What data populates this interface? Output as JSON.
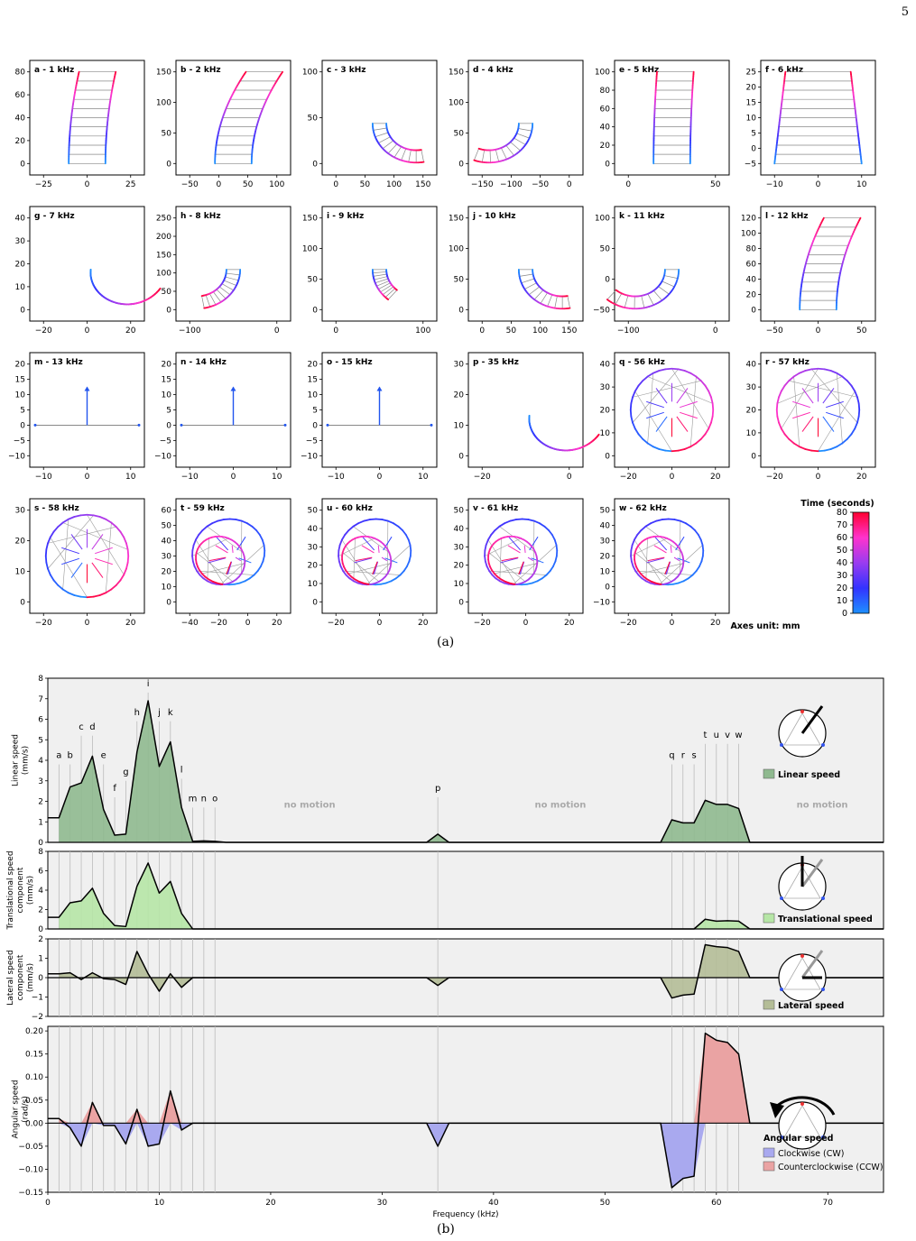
{
  "page_number": "5",
  "captions": {
    "a": "(a)",
    "b": "(b)"
  },
  "grid_note": "Axes unit: mm",
  "colorbar": {
    "label": "Time (seconds)",
    "ticks": [
      "0",
      "10",
      "20",
      "30",
      "40",
      "50",
      "60",
      "70",
      "80"
    ],
    "stops": [
      "#1e90ff",
      "#3333ff",
      "#9a3cf0",
      "#ff33cc",
      "#ff0030"
    ]
  },
  "colors": {
    "outline": "#000000",
    "grid": "#bbbbbb",
    "panel_bg": "#f0f0f0",
    "linear_fill": "#8fb98f",
    "trans_fill": "#b6e6a6",
    "lat_fill": "#b4bd97",
    "cw_fill": "#a9a9ef",
    "ccw_fill": "#eaa3a3",
    "no_motion": "#aaaaaa"
  },
  "trajectory_panels": [
    {
      "id": "a",
      "title": "a - 1 kHz",
      "xticks": [
        "-25",
        "0",
        "25"
      ],
      "yticks": [
        "0",
        "20",
        "40",
        "60",
        "80"
      ],
      "shape": "straight",
      "bend": 0.15
    },
    {
      "id": "b",
      "title": "b - 2 kHz",
      "xticks": [
        "-50",
        "0",
        "50",
        "100"
      ],
      "yticks": [
        "0",
        "50",
        "100",
        "150"
      ],
      "shape": "straight",
      "bend": 0.45
    },
    {
      "id": "c",
      "title": "c - 3 kHz",
      "xticks": [
        "0",
        "50",
        "100",
        "150"
      ],
      "yticks": [
        "0",
        "50",
        "100"
      ],
      "shape": "arc",
      "sweep": 200
    },
    {
      "id": "d",
      "title": "d - 4 kHz",
      "xticks": [
        "-150",
        "-100",
        "-50",
        "0"
      ],
      "yticks": [
        "0",
        "50",
        "100",
        "150"
      ],
      "shape": "arc",
      "sweep": -220
    },
    {
      "id": "e",
      "title": "e - 5 kHz",
      "xticks": [
        "0",
        "50"
      ],
      "yticks": [
        "0",
        "20",
        "40",
        "60",
        "80",
        "100"
      ],
      "shape": "straight",
      "bend": 0.05
    },
    {
      "id": "f",
      "title": "f - 6 kHz",
      "xticks": [
        "-10",
        "0",
        "10"
      ],
      "yticks": [
        "-5",
        "0",
        "5",
        "10",
        "15",
        "20",
        "25"
      ],
      "shape": "fan",
      "bend": 0
    },
    {
      "id": "g",
      "title": "g - 7 kHz",
      "xticks": [
        "-20",
        "0",
        "20"
      ],
      "yticks": [
        "0",
        "10",
        "20",
        "30",
        "40"
      ],
      "shape": "spiral",
      "sweep": 300
    },
    {
      "id": "h",
      "title": "h - 8 kHz",
      "xticks": [
        "-100",
        "0"
      ],
      "yticks": [
        "0",
        "50",
        "100",
        "150",
        "200",
        "250"
      ],
      "shape": "arc",
      "sweep": -160
    },
    {
      "id": "i",
      "title": "i - 9 kHz",
      "xticks": [
        "0",
        "100"
      ],
      "yticks": [
        "0",
        "50",
        "100",
        "150"
      ],
      "shape": "arc",
      "sweep": 100
    },
    {
      "id": "j",
      "title": "j - 10 kHz",
      "xticks": [
        "0",
        "50",
        "100",
        "150"
      ],
      "yticks": [
        "0",
        "50",
        "100",
        "150"
      ],
      "shape": "arc",
      "sweep": 200
    },
    {
      "id": "k",
      "title": "k - 11 kHz",
      "xticks": [
        "-100",
        "0"
      ],
      "yticks": [
        "-50",
        "0",
        "50",
        "100"
      ],
      "shape": "arc",
      "sweep": -260
    },
    {
      "id": "l",
      "title": "l - 12 kHz",
      "xticks": [
        "-50",
        "0",
        "50"
      ],
      "yticks": [
        "0",
        "20",
        "40",
        "60",
        "80",
        "100",
        "120"
      ],
      "shape": "straight",
      "bend": 0.35
    },
    {
      "id": "m",
      "title": "m - 13 kHz",
      "xticks": [
        "-10",
        "0",
        "10"
      ],
      "yticks": [
        "-10",
        "-5",
        "0",
        "5",
        "10",
        "15",
        "20"
      ],
      "shape": "still"
    },
    {
      "id": "n",
      "title": "n - 14 kHz",
      "xticks": [
        "-10",
        "0",
        "10"
      ],
      "yticks": [
        "-10",
        "-5",
        "0",
        "5",
        "10",
        "15",
        "20"
      ],
      "shape": "still"
    },
    {
      "id": "o",
      "title": "o - 15 kHz",
      "xticks": [
        "-10",
        "0",
        "10"
      ],
      "yticks": [
        "-10",
        "-5",
        "0",
        "5",
        "10",
        "15",
        "20"
      ],
      "shape": "still"
    },
    {
      "id": "p",
      "title": "p - 35 kHz",
      "xticks": [
        "-20",
        "0"
      ],
      "yticks": [
        "0",
        "10",
        "20",
        "30"
      ],
      "shape": "spiral",
      "sweep": 300
    },
    {
      "id": "q",
      "title": "q - 56 kHz",
      "xticks": [
        "-20",
        "0",
        "20"
      ],
      "yticks": [
        "0",
        "10",
        "20",
        "30",
        "40"
      ],
      "shape": "circle",
      "rot": 1
    },
    {
      "id": "r",
      "title": "r - 57 kHz",
      "xticks": [
        "-20",
        "0",
        "20"
      ],
      "yticks": [
        "0",
        "10",
        "20",
        "30",
        "40"
      ],
      "shape": "circle",
      "rot": -1
    },
    {
      "id": "s",
      "title": "s - 58 kHz",
      "xticks": [
        "-20",
        "0",
        "20"
      ],
      "yticks": [
        "0",
        "10",
        "20",
        "30"
      ],
      "shape": "circle",
      "rot": 1
    },
    {
      "id": "t",
      "title": "t - 59 kHz",
      "xticks": [
        "-40",
        "-20",
        "0",
        "20"
      ],
      "yticks": [
        "0",
        "10",
        "20",
        "30",
        "40",
        "50",
        "60"
      ],
      "shape": "loops"
    },
    {
      "id": "u",
      "title": "u - 60 kHz",
      "xticks": [
        "-20",
        "0",
        "20"
      ],
      "yticks": [
        "0",
        "10",
        "20",
        "30",
        "40",
        "50"
      ],
      "shape": "loops"
    },
    {
      "id": "v",
      "title": "v - 61 kHz",
      "xticks": [
        "-20",
        "0",
        "20"
      ],
      "yticks": [
        "0",
        "10",
        "20",
        "30",
        "40",
        "50"
      ],
      "shape": "loops"
    },
    {
      "id": "w",
      "title": "w - 62 kHz",
      "xticks": [
        "-20",
        "0",
        "20"
      ],
      "yticks": [
        "-10",
        "0",
        "10",
        "20",
        "30",
        "40",
        "50"
      ],
      "shape": "loops"
    }
  ],
  "chart_data": [
    {
      "type": "area",
      "ylabel": "Linear speed\n(mm/s)",
      "ylim": [
        0,
        8
      ],
      "yticks": [
        "0",
        "1",
        "2",
        "3",
        "4",
        "5",
        "6",
        "7",
        "8"
      ],
      "legend": "Linear speed",
      "x": [
        1,
        2,
        3,
        4,
        5,
        6,
        7,
        8,
        9,
        10,
        11,
        12,
        13,
        14,
        15,
        16,
        34,
        35,
        36,
        55,
        56,
        57,
        58,
        59,
        60,
        61,
        62,
        63
      ],
      "y": [
        1.2,
        2.7,
        2.9,
        4.2,
        1.6,
        0.35,
        0.4,
        4.4,
        6.9,
        3.7,
        4.9,
        1.7,
        0.05,
        0.07,
        0.05,
        0,
        0,
        0.4,
        0,
        0,
        1.1,
        0.95,
        0.95,
        2.05,
        1.85,
        1.85,
        1.65,
        0
      ],
      "point_labels": [
        {
          "label": "a",
          "x": 1,
          "y": 4.1
        },
        {
          "label": "b",
          "x": 2,
          "y": 4.1
        },
        {
          "label": "c",
          "x": 3,
          "y": 5.5
        },
        {
          "label": "d",
          "x": 4,
          "y": 5.5
        },
        {
          "label": "e",
          "x": 5,
          "y": 4.1
        },
        {
          "label": "f",
          "x": 6,
          "y": 2.5
        },
        {
          "label": "g",
          "x": 7,
          "y": 3.3
        },
        {
          "label": "h",
          "x": 8,
          "y": 6.2
        },
        {
          "label": "i",
          "x": 9,
          "y": 7.6
        },
        {
          "label": "j",
          "x": 10,
          "y": 6.2
        },
        {
          "label": "k",
          "x": 11,
          "y": 6.2
        },
        {
          "label": "l",
          "x": 12,
          "y": 3.4
        },
        {
          "label": "m",
          "x": 13,
          "y": 2.0
        },
        {
          "label": "n",
          "x": 14,
          "y": 2.0
        },
        {
          "label": "o",
          "x": 15,
          "y": 2.0
        },
        {
          "label": "p",
          "x": 35,
          "y": 2.5
        },
        {
          "label": "q",
          "x": 56,
          "y": 4.1
        },
        {
          "label": "r",
          "x": 57,
          "y": 4.1
        },
        {
          "label": "s",
          "x": 58,
          "y": 4.1
        },
        {
          "label": "t",
          "x": 59,
          "y": 5.1
        },
        {
          "label": "u",
          "x": 60,
          "y": 5.1
        },
        {
          "label": "v",
          "x": 61,
          "y": 5.1
        },
        {
          "label": "w",
          "x": 62,
          "y": 5.1
        }
      ],
      "annotations": [
        {
          "text": "no motion",
          "x": 23.5,
          "y": 1.7
        },
        {
          "text": "no motion",
          "x": 46,
          "y": 1.7
        },
        {
          "text": "no motion",
          "x": 69.5,
          "y": 1.7
        }
      ]
    },
    {
      "type": "area",
      "ylabel": "Translational speed\ncomponent\n(mm/s)",
      "ylim": [
        0,
        8
      ],
      "yticks": [
        "0",
        "2",
        "4",
        "6",
        "8"
      ],
      "legend": "Translational speed",
      "x": [
        1,
        2,
        3,
        4,
        5,
        6,
        7,
        8,
        9,
        10,
        11,
        12,
        13,
        14,
        15,
        16,
        34,
        35,
        36,
        55,
        56,
        57,
        58,
        59,
        60,
        61,
        62,
        63
      ],
      "y": [
        1.2,
        2.7,
        2.9,
        4.2,
        1.6,
        0.35,
        0.25,
        4.4,
        6.8,
        3.7,
        4.9,
        1.6,
        0,
        0,
        0,
        0,
        0,
        0,
        0,
        0,
        0,
        0,
        0,
        1.0,
        0.8,
        0.85,
        0.8,
        0
      ]
    },
    {
      "type": "area",
      "ylabel": "Lateral speed\ncomponent\n(mm/s)",
      "ylim": [
        -2,
        2
      ],
      "yticks": [
        "-2",
        "-1",
        "0",
        "1",
        "2"
      ],
      "legend": "Lateral speed",
      "x": [
        1,
        2,
        3,
        4,
        5,
        6,
        7,
        8,
        9,
        10,
        11,
        12,
        13,
        14,
        15,
        16,
        34,
        35,
        36,
        55,
        56,
        57,
        58,
        59,
        60,
        61,
        62,
        63
      ],
      "y": [
        0.2,
        0.25,
        -0.1,
        0.25,
        -0.05,
        -0.1,
        -0.35,
        1.35,
        0.2,
        -0.7,
        0.2,
        -0.5,
        0,
        0,
        0,
        0,
        0,
        -0.4,
        0,
        0,
        -1.05,
        -0.9,
        -0.85,
        1.7,
        1.6,
        1.55,
        1.35,
        0
      ]
    },
    {
      "type": "area",
      "xlabel": "Frequency (kHz)",
      "ylabel": "Angular speed\n(rad/s)",
      "ylim": [
        -0.15,
        0.21
      ],
      "yticks": [
        "-0.15",
        "-0.10",
        "-0.05",
        "0.00",
        "0.05",
        "0.10",
        "0.15",
        "0.20"
      ],
      "xlim": [
        0,
        75
      ],
      "xticks": [
        "0",
        "10",
        "20",
        "30",
        "40",
        "50",
        "60",
        "70"
      ],
      "legend_title": "Angular speed",
      "legend": [
        "Clockwise (CW)",
        "Counterclockwise (CCW)"
      ],
      "x": [
        1,
        2,
        3,
        4,
        5,
        6,
        7,
        8,
        9,
        10,
        11,
        12,
        13,
        14,
        15,
        16,
        34,
        35,
        36,
        55,
        56,
        57,
        58,
        59,
        60,
        61,
        62,
        63
      ],
      "y": [
        0.01,
        -0.01,
        -0.05,
        0.045,
        -0.005,
        -0.005,
        -0.045,
        0.03,
        -0.05,
        -0.045,
        0.07,
        -0.015,
        0,
        0,
        0,
        0,
        0,
        -0.05,
        0,
        0,
        -0.14,
        -0.12,
        -0.115,
        0.195,
        0.18,
        0.175,
        0.15,
        0
      ]
    }
  ]
}
